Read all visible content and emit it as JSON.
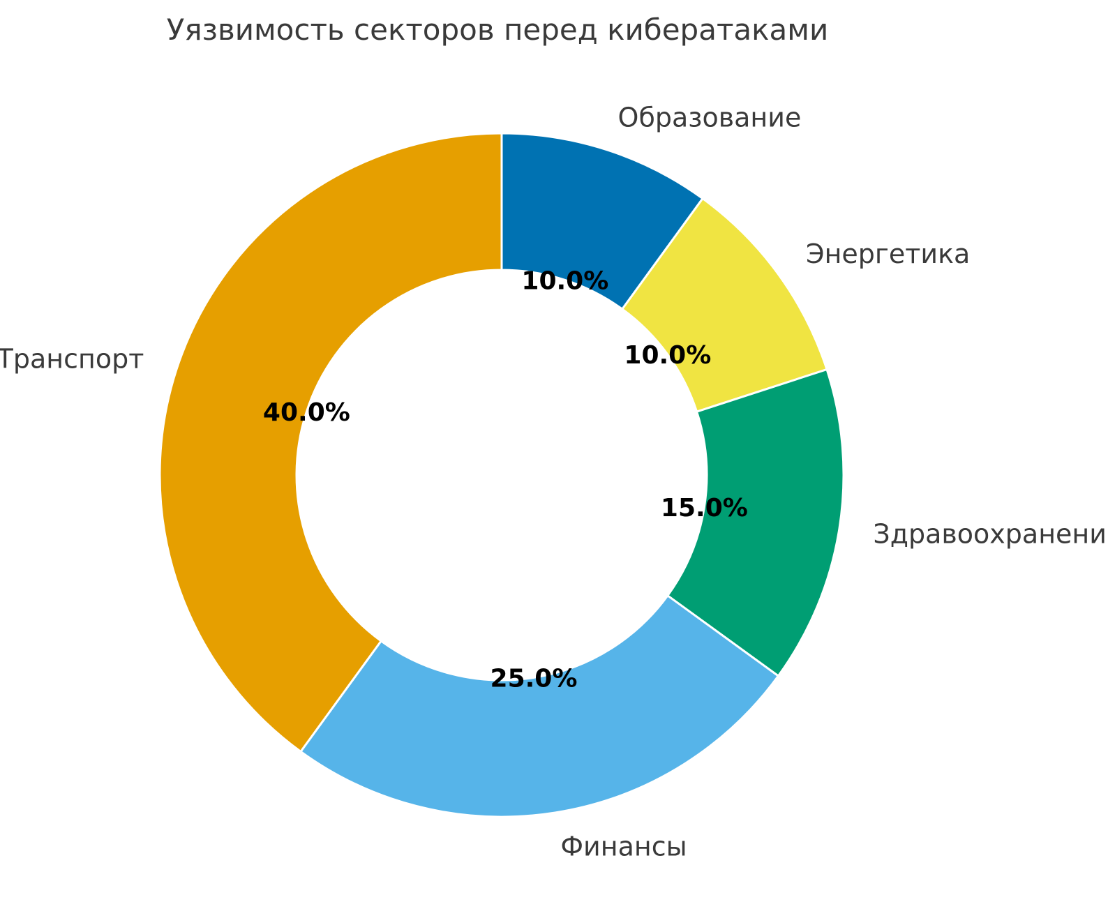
{
  "chart_data": {
    "type": "pie",
    "subtype": "donut",
    "title": "Уязвимость секторов перед кибератаками",
    "labels": [
      "Образование",
      "Энергетика",
      "Здравоохранение",
      "Финансы",
      "Транспорт"
    ],
    "values": [
      10.0,
      10.0,
      15.0,
      25.0,
      40.0
    ],
    "percent_labels": [
      "10.0%",
      "10.0%",
      "15.0%",
      "25.0%",
      "40.0%"
    ],
    "colors": [
      "#0072b2",
      "#f0e442",
      "#009e73",
      "#56b4e9",
      "#e69f00"
    ],
    "wedge_edge_color": "#ffffff",
    "label_color": "#3a3a3a",
    "percent_label_color": "#000000",
    "start_angle": "top",
    "direction": "clockwise",
    "donut_hole_ratio": 0.6,
    "label_distance": 1.1,
    "pct_distance": 0.6,
    "legend": "none",
    "background_color": "#ffffff"
  }
}
